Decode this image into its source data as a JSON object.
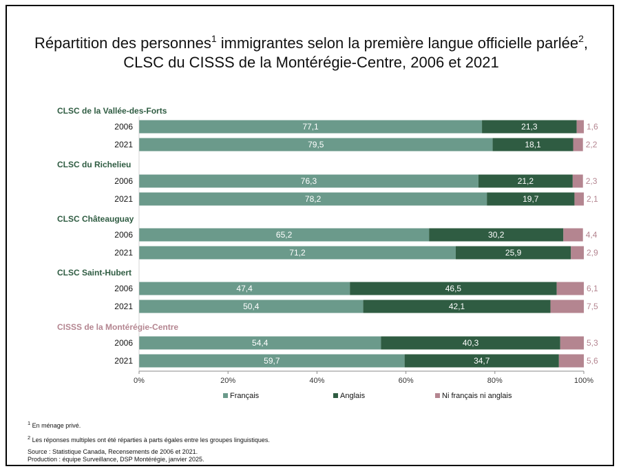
{
  "title": {
    "line1_a": "Répartition des personnes",
    "line1_sup1": "1",
    "line1_b": " immigrantes selon la première langue officielle parlée",
    "line1_sup2": "2",
    "line1_c": ",",
    "line2": "CLSC du CISSS de la Montérégie-Centre, 2006 et 2021"
  },
  "chart_data": {
    "type": "bar",
    "orientation": "horizontal",
    "stacked": "percent",
    "xlim": [
      0,
      100
    ],
    "x_ticks": [
      "0%",
      "20%",
      "40%",
      "60%",
      "80%",
      "100%"
    ],
    "legend_position": "bottom",
    "series": [
      {
        "name": "Français",
        "color": "#6b9a8b"
      },
      {
        "name": "Anglais",
        "color": "#2f5c42"
      },
      {
        "name": "Ni français ni anglais",
        "color": "#b48590"
      }
    ],
    "groups": [
      {
        "label": "CLSC de la Vallée-des-Forts",
        "label_color": "#2f5c42",
        "rows": [
          {
            "year": "2006",
            "values": [
              77.1,
              21.3,
              1.6
            ],
            "labels": [
              "77,1",
              "21,3",
              "1,6"
            ]
          },
          {
            "year": "2021",
            "values": [
              79.5,
              18.1,
              2.2
            ],
            "labels": [
              "79,5",
              "18,1",
              "2,2"
            ]
          }
        ]
      },
      {
        "label": "CLSC du Richelieu",
        "label_color": "#2f5c42",
        "rows": [
          {
            "year": "2006",
            "values": [
              76.3,
              21.2,
              2.3
            ],
            "labels": [
              "76,3",
              "21,2",
              "2,3"
            ]
          },
          {
            "year": "2021",
            "values": [
              78.2,
              19.7,
              2.1
            ],
            "labels": [
              "78,2",
              "19,7",
              "2,1"
            ]
          }
        ]
      },
      {
        "label": "CLSC Châteauguay",
        "label_color": "#2f5c42",
        "rows": [
          {
            "year": "2006",
            "values": [
              65.2,
              30.2,
              4.4
            ],
            "labels": [
              "65,2",
              "30,2",
              "4,4"
            ]
          },
          {
            "year": "2021",
            "values": [
              71.2,
              25.9,
              2.9
            ],
            "labels": [
              "71,2",
              "25,9",
              "2,9"
            ]
          }
        ]
      },
      {
        "label": "CLSC Saint-Hubert",
        "label_color": "#2f5c42",
        "rows": [
          {
            "year": "2006",
            "values": [
              47.4,
              46.5,
              6.1
            ],
            "labels": [
              "47,4",
              "46,5",
              "6,1"
            ]
          },
          {
            "year": "2021",
            "values": [
              50.4,
              42.1,
              7.5
            ],
            "labels": [
              "50,4",
              "42,1",
              "7,5"
            ]
          }
        ]
      },
      {
        "label": "CISSS de la Montérégie-Centre",
        "label_color": "#b48590",
        "rows": [
          {
            "year": "2006",
            "values": [
              54.4,
              40.3,
              5.3
            ],
            "labels": [
              "54,4",
              "40,3",
              "5,3"
            ]
          },
          {
            "year": "2021",
            "values": [
              59.7,
              34.7,
              5.6
            ],
            "labels": [
              "59,7",
              "34,7",
              "5,6"
            ]
          }
        ]
      }
    ]
  },
  "footnotes": {
    "note1_sup": "1",
    "note1": " En ménage privé.",
    "note2_sup": "2",
    "note2": " Les réponses multiples ont été réparties à parts égales entre les groupes linguistiques.",
    "source": "Source : Statistique Canada, Recensements de 2006 et 2021.",
    "production": "Production : équipe Surveillance, DSP Montérégie, janvier 2025."
  }
}
